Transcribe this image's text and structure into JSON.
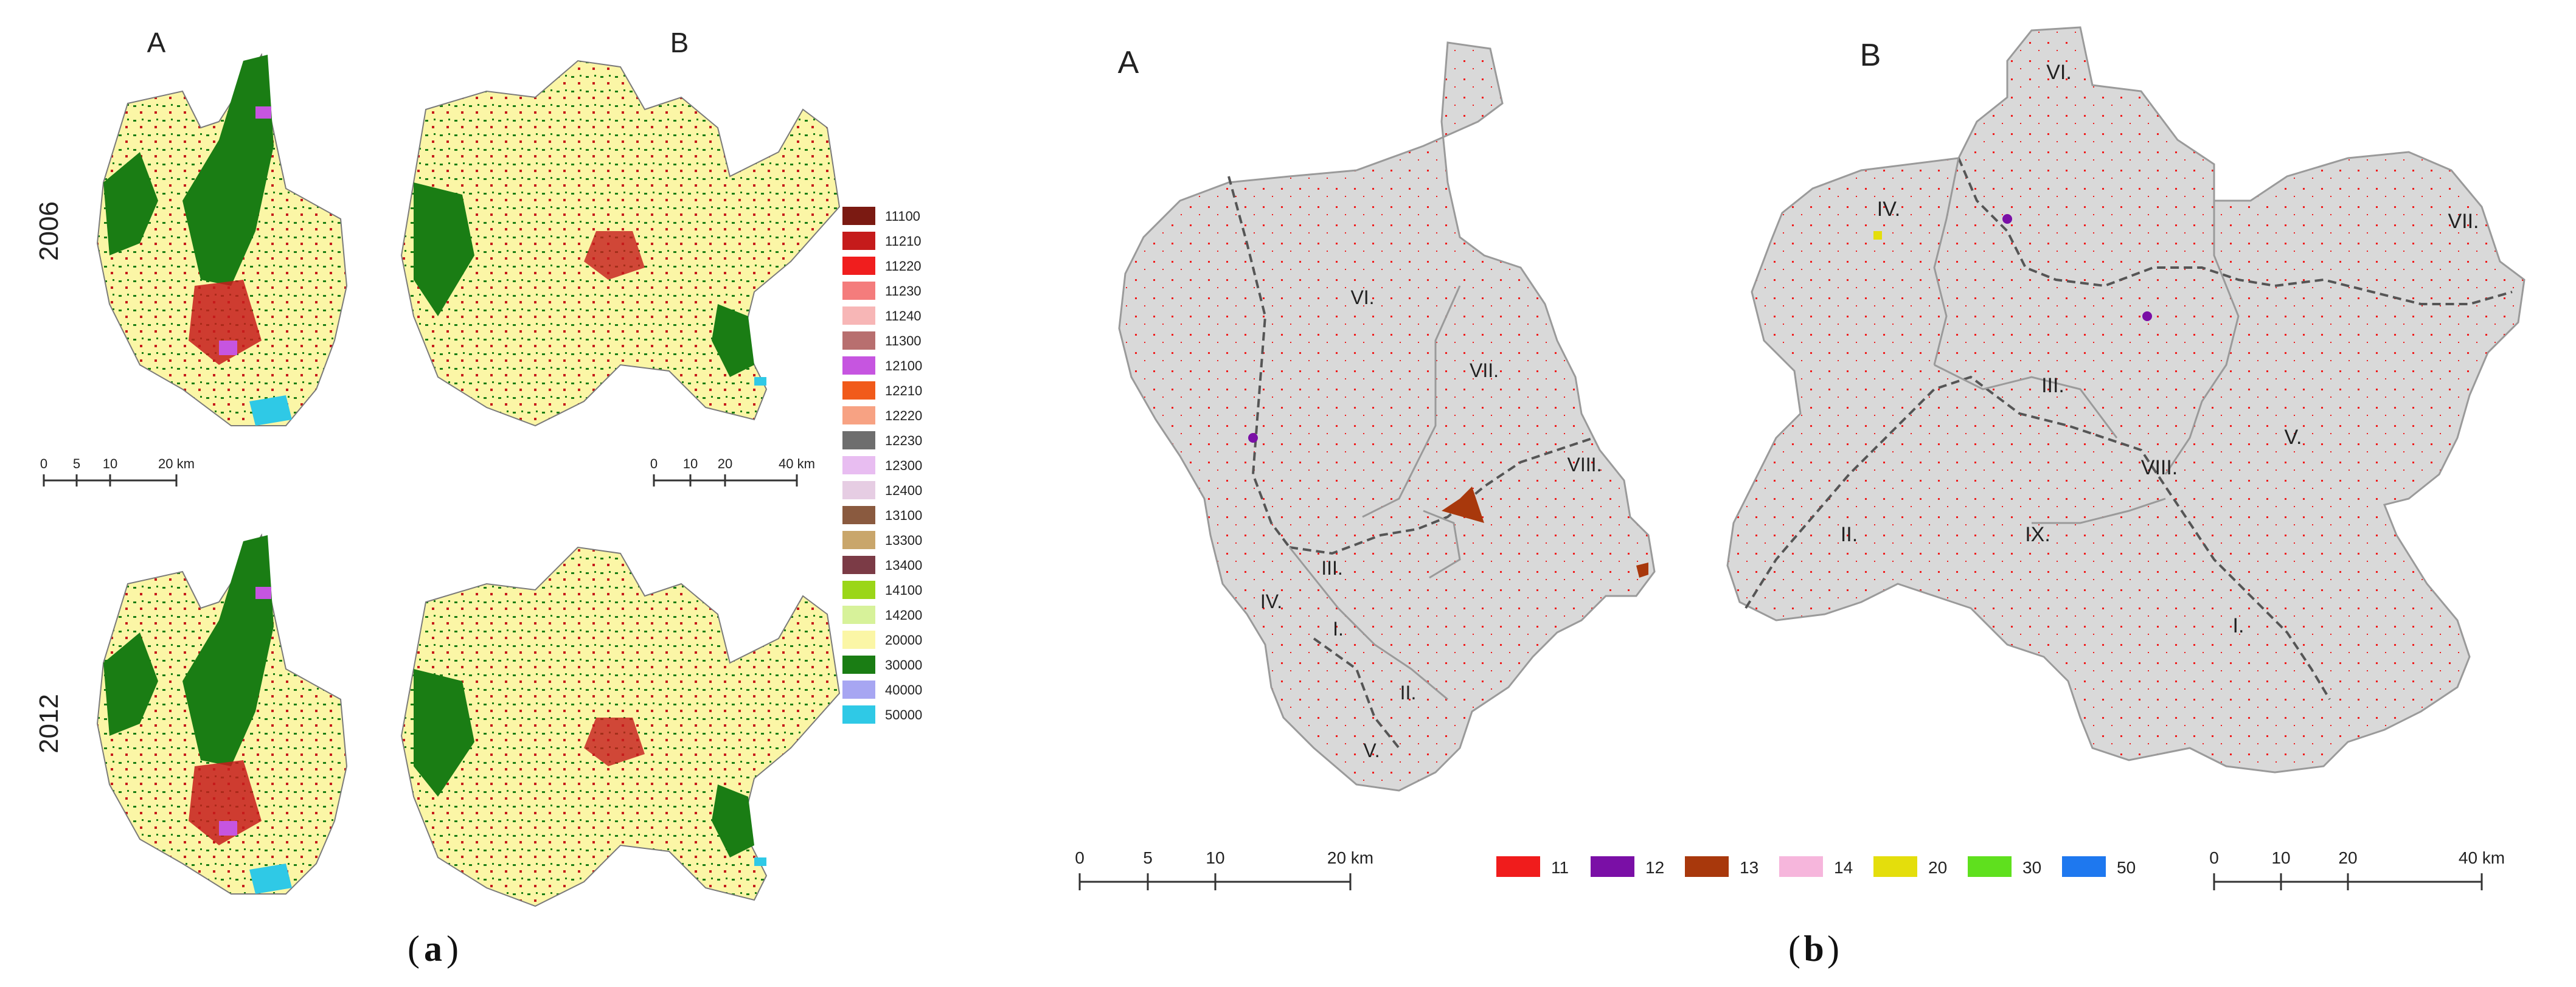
{
  "panel_a": {
    "col_labels": [
      "A",
      "B"
    ],
    "row_labels": [
      "2006",
      "2012"
    ],
    "scale_left": {
      "ticks": [
        "0",
        "5",
        "10",
        "20 km"
      ]
    },
    "scale_right": {
      "ticks": [
        "0",
        "10",
        "20",
        "40 km"
      ]
    },
    "legend": [
      {
        "code": "11100",
        "color": "#7b1a12"
      },
      {
        "code": "11210",
        "color": "#c51b1b"
      },
      {
        "code": "11220",
        "color": "#f01e1e"
      },
      {
        "code": "11230",
        "color": "#f47c7c"
      },
      {
        "code": "11240",
        "color": "#f7b6b6"
      },
      {
        "code": "11300",
        "color": "#b86f6f"
      },
      {
        "code": "12100",
        "color": "#c655e0"
      },
      {
        "code": "12210",
        "color": "#f15a1a"
      },
      {
        "code": "12220",
        "color": "#f7a283"
      },
      {
        "code": "12230",
        "color": "#6e6e6e"
      },
      {
        "code": "12300",
        "color": "#e8bdf1"
      },
      {
        "code": "12400",
        "color": "#e6cde3"
      },
      {
        "code": "13100",
        "color": "#8a5a3f"
      },
      {
        "code": "13300",
        "color": "#c9a66b"
      },
      {
        "code": "13400",
        "color": "#7b3b46"
      },
      {
        "code": "14100",
        "color": "#9bd618"
      },
      {
        "code": "14200",
        "color": "#d7f29a"
      },
      {
        "code": "20000",
        "color": "#fbf6a6"
      },
      {
        "code": "30000",
        "color": "#1a7d14"
      },
      {
        "code": "40000",
        "color": "#a7a6f2"
      },
      {
        "code": "50000",
        "color": "#2fc9e6"
      }
    ],
    "caption_open": "(",
    "caption_letter": "a",
    "caption_close": ")"
  },
  "panel_b": {
    "map_labels": [
      "A",
      "B"
    ],
    "districts_a": [
      "VI.",
      "VII.",
      "VIII.",
      "III.",
      "IV.",
      "I.",
      "II.",
      "V."
    ],
    "districts_b": [
      "VI.",
      "IV.",
      "VII.",
      "III.",
      "V.",
      "VIII.",
      "II.",
      "IX.",
      "I."
    ],
    "scale_left": {
      "ticks": [
        "0",
        "5",
        "10",
        "20 km"
      ]
    },
    "scale_right": {
      "ticks": [
        "0",
        "10",
        "20",
        "40 km"
      ]
    },
    "legend": [
      {
        "code": "11",
        "color": "#f01c1c"
      },
      {
        "code": "12",
        "color": "#7a0fa6"
      },
      {
        "code": "13",
        "color": "#a8380c"
      },
      {
        "code": "14",
        "color": "#f6b6dc"
      },
      {
        "code": "20",
        "color": "#e4de0c"
      },
      {
        "code": "30",
        "color": "#5fe01e"
      },
      {
        "code": "50",
        "color": "#1e78ef"
      }
    ],
    "caption_open": "(",
    "caption_letter": "b",
    "caption_close": ")"
  },
  "colors": {
    "district_fill": "#d9d9d9",
    "boundary": "#888888"
  }
}
